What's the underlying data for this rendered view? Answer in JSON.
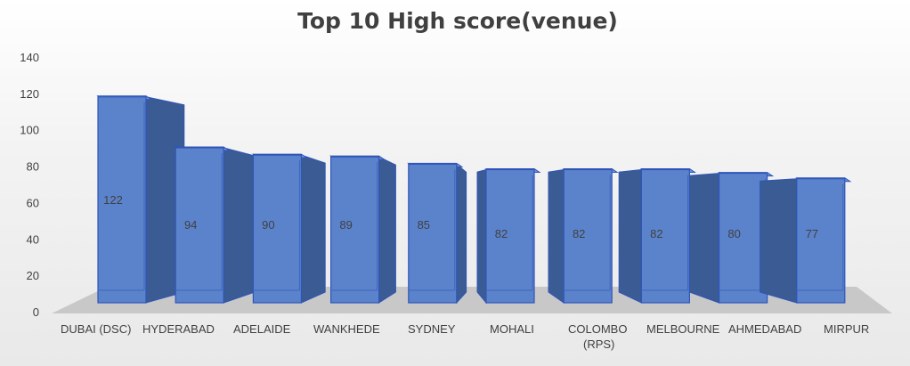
{
  "chart_data": {
    "type": "bar",
    "title": "Top 10 High score(venue)",
    "categories": [
      "DUBAI (DSC)",
      "HYDERABAD",
      "ADELAIDE",
      "WANKHEDE",
      "SYDNEY",
      "MOHALI",
      "COLOMBO (RPS)",
      "MELBOURNE",
      "AHMEDABAD",
      "MIRPUR"
    ],
    "values": [
      122,
      94,
      90,
      89,
      85,
      82,
      82,
      82,
      80,
      77
    ],
    "ylim": [
      0,
      140
    ],
    "yticks": [
      0,
      20,
      40,
      60,
      80,
      100,
      120,
      140
    ],
    "grid": false,
    "legend": "none",
    "colors": {
      "bar_front": "#5b83cc",
      "bar_side": "#3b5b94",
      "bar_outline": "#2f55b8",
      "floor": "#c8c8c8",
      "text": "#404040"
    }
  }
}
